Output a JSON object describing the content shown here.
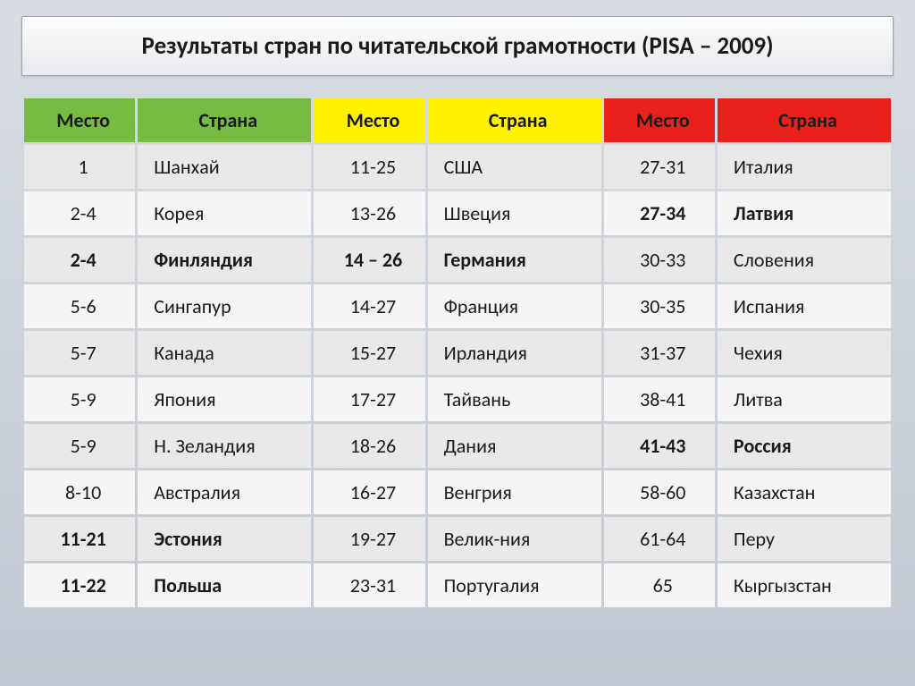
{
  "title": "Результаты стран по читательской грамотности (PISA – 2009)",
  "headers": {
    "place": "Место",
    "country": "Страна"
  },
  "header_colors": {
    "green": "#77bb41",
    "yellow": "#fff200",
    "red": "#e8211b"
  },
  "rows": [
    {
      "c1p": "1",
      "c1c": "Шанхай",
      "c1b": false,
      "c2p": "11-25",
      "c2c": "США",
      "c2b": false,
      "c3p": "27-31",
      "c3c": "Италия",
      "c3b": false
    },
    {
      "c1p": "2-4",
      "c1c": "Корея",
      "c1b": false,
      "c2p": "13-26",
      "c2c": "Швеция",
      "c2b": false,
      "c3p": "27-34",
      "c3c": "Латвия",
      "c3b": true
    },
    {
      "c1p": "2-4",
      "c1c": "Финляндия",
      "c1b": true,
      "c2p": "14 – 26",
      "c2c": "Германия",
      "c2b": true,
      "c3p": "30-33",
      "c3c": "Словения",
      "c3b": false
    },
    {
      "c1p": "5-6",
      "c1c": "Сингапур",
      "c1b": false,
      "c2p": "14-27",
      "c2c": "Франция",
      "c2b": false,
      "c3p": "30-35",
      "c3c": "Испания",
      "c3b": false
    },
    {
      "c1p": "5-7",
      "c1c": "Канада",
      "c1b": false,
      "c2p": "15-27",
      "c2c": "Ирландия",
      "c2b": false,
      "c3p": "31-37",
      "c3c": "Чехия",
      "c3b": false
    },
    {
      "c1p": "5-9",
      "c1c": "Япония",
      "c1b": false,
      "c2p": "17-27",
      "c2c": "Тайвань",
      "c2b": false,
      "c3p": "38-41",
      "c3c": "Литва",
      "c3b": false
    },
    {
      "c1p": "5-9",
      "c1c": "Н. Зеландия",
      "c1b": false,
      "c2p": "18-26",
      "c2c": "Дания",
      "c2b": false,
      "c3p": "41-43",
      "c3c": "Россия",
      "c3b": true
    },
    {
      "c1p": "8-10",
      "c1c": "Австралия",
      "c1b": false,
      "c2p": "16-27",
      "c2c": "Венгрия",
      "c2b": false,
      "c3p": "58-60",
      "c3c": "Казахстан",
      "c3b": false
    },
    {
      "c1p": "11-21",
      "c1c": "Эстония",
      "c1b": true,
      "c2p": "19-27",
      "c2c": "Велик-ния",
      "c2b": false,
      "c3p": "61-64",
      "c3c": "Перу",
      "c3b": false
    },
    {
      "c1p": "11-22",
      "c1c": "Польша",
      "c1b": true,
      "c2p": "23-31",
      "c2c": "Португалия",
      "c2b": false,
      "c3p": "65",
      "c3c": "Кыргызстан",
      "c3b": false
    }
  ]
}
